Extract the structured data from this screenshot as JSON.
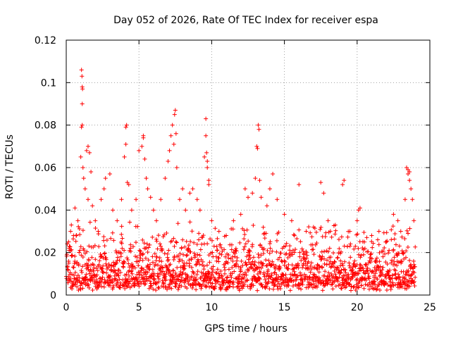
{
  "chart_data": {
    "type": "scatter",
    "title": "Day 052 of 2026, Rate Of TEC Index for receiver espa",
    "xlabel": "GPS time / hours",
    "ylabel": "ROTI / TECUs",
    "xlim": [
      0,
      25
    ],
    "ylim": [
      0,
      0.12
    ],
    "xticks": [
      0,
      5,
      10,
      15,
      20,
      25
    ],
    "xtick_labels": [
      "0",
      "5",
      "10",
      "15",
      "20",
      "25"
    ],
    "yticks": [
      0,
      0.02,
      0.04,
      0.06,
      0.08,
      0.1,
      0.12
    ],
    "ytick_labels": [
      "0",
      "0.02",
      "0.04",
      "0.06",
      "0.08",
      "0.1",
      "0.12"
    ],
    "grid": true,
    "marker": "+",
    "color": "#ff0000",
    "series": [
      {
        "name": "ROTI",
        "points": [
          [
            0.1,
            0.012
          ],
          [
            0.2,
            0.022
          ],
          [
            0.3,
            0.03
          ],
          [
            0.35,
            0.033
          ],
          [
            0.5,
            0.028
          ],
          [
            0.6,
            0.041
          ],
          [
            0.8,
            0.035
          ],
          [
            1.0,
            0.065
          ],
          [
            1.05,
            0.106
          ],
          [
            1.08,
            0.103
          ],
          [
            1.1,
            0.098
          ],
          [
            1.12,
            0.097
          ],
          [
            1.1,
            0.09
          ],
          [
            1.05,
            0.079
          ],
          [
            1.1,
            0.08
          ],
          [
            1.15,
            0.06
          ],
          [
            1.2,
            0.055
          ],
          [
            1.3,
            0.05
          ],
          [
            1.4,
            0.068
          ],
          [
            1.5,
            0.07
          ],
          [
            1.6,
            0.067
          ],
          [
            1.5,
            0.045
          ],
          [
            1.7,
            0.058
          ],
          [
            1.8,
            0.042
          ],
          [
            2.0,
            0.035
          ],
          [
            2.2,
            0.03
          ],
          [
            2.4,
            0.045
          ],
          [
            2.6,
            0.05
          ],
          [
            2.7,
            0.055
          ],
          [
            3.0,
            0.057
          ],
          [
            3.2,
            0.04
          ],
          [
            3.5,
            0.035
          ],
          [
            3.8,
            0.045
          ],
          [
            4.0,
            0.065
          ],
          [
            4.1,
            0.071
          ],
          [
            4.1,
            0.079
          ],
          [
            4.15,
            0.08
          ],
          [
            4.2,
            0.053
          ],
          [
            4.3,
            0.052
          ],
          [
            4.5,
            0.04
          ],
          [
            4.8,
            0.045
          ],
          [
            5.0,
            0.068
          ],
          [
            5.2,
            0.07
          ],
          [
            5.3,
            0.074
          ],
          [
            5.3,
            0.075
          ],
          [
            5.4,
            0.064
          ],
          [
            5.5,
            0.055
          ],
          [
            5.6,
            0.05
          ],
          [
            5.8,
            0.046
          ],
          [
            6.0,
            0.04
          ],
          [
            6.2,
            0.035
          ],
          [
            6.5,
            0.045
          ],
          [
            6.8,
            0.055
          ],
          [
            7.0,
            0.063
          ],
          [
            7.1,
            0.068
          ],
          [
            7.2,
            0.075
          ],
          [
            7.3,
            0.08
          ],
          [
            7.4,
            0.071
          ],
          [
            7.45,
            0.085
          ],
          [
            7.5,
            0.087
          ],
          [
            7.55,
            0.076
          ],
          [
            7.6,
            0.06
          ],
          [
            7.8,
            0.045
          ],
          [
            8.0,
            0.05
          ],
          [
            8.2,
            0.04
          ],
          [
            8.5,
            0.048
          ],
          [
            8.7,
            0.05
          ],
          [
            9.0,
            0.045
          ],
          [
            9.2,
            0.04
          ],
          [
            9.5,
            0.065
          ],
          [
            9.6,
            0.083
          ],
          [
            9.6,
            0.075
          ],
          [
            9.65,
            0.067
          ],
          [
            9.7,
            0.063
          ],
          [
            9.7,
            0.06
          ],
          [
            9.8,
            0.054
          ],
          [
            9.8,
            0.052
          ],
          [
            10.0,
            0.035
          ],
          [
            10.5,
            0.03
          ],
          [
            11.0,
            0.028
          ],
          [
            11.5,
            0.035
          ],
          [
            12.0,
            0.038
          ],
          [
            12.3,
            0.05
          ],
          [
            12.5,
            0.046
          ],
          [
            12.8,
            0.048
          ],
          [
            13.0,
            0.055
          ],
          [
            13.1,
            0.07
          ],
          [
            13.15,
            0.069
          ],
          [
            13.2,
            0.08
          ],
          [
            13.25,
            0.078
          ],
          [
            13.3,
            0.054
          ],
          [
            13.4,
            0.046
          ],
          [
            13.8,
            0.042
          ],
          [
            14.0,
            0.05
          ],
          [
            14.2,
            0.057
          ],
          [
            14.5,
            0.045
          ],
          [
            15.0,
            0.038
          ],
          [
            15.5,
            0.035
          ],
          [
            16.0,
            0.052
          ],
          [
            16.5,
            0.03
          ],
          [
            17.0,
            0.032
          ],
          [
            17.5,
            0.053
          ],
          [
            17.7,
            0.048
          ],
          [
            18.0,
            0.035
          ],
          [
            18.5,
            0.033
          ],
          [
            19.0,
            0.052
          ],
          [
            19.1,
            0.054
          ],
          [
            19.5,
            0.03
          ],
          [
            20.0,
            0.035
          ],
          [
            20.1,
            0.04
          ],
          [
            20.2,
            0.041
          ],
          [
            20.5,
            0.025
          ],
          [
            21.0,
            0.028
          ],
          [
            21.5,
            0.03
          ],
          [
            22.0,
            0.025
          ],
          [
            22.5,
            0.038
          ],
          [
            22.8,
            0.035
          ],
          [
            23.0,
            0.03
          ],
          [
            23.3,
            0.045
          ],
          [
            23.4,
            0.06
          ],
          [
            23.5,
            0.059
          ],
          [
            23.5,
            0.057
          ],
          [
            23.6,
            0.058
          ],
          [
            23.6,
            0.054
          ],
          [
            23.7,
            0.05
          ],
          [
            23.8,
            0.045
          ],
          [
            23.9,
            0.035
          ]
        ],
        "dense_band": {
          "x_range": [
            0,
            24
          ],
          "floor_range": [
            0.002,
            0.008
          ],
          "typical_upper": [
            0.02,
            0.035
          ]
        }
      }
    ]
  }
}
